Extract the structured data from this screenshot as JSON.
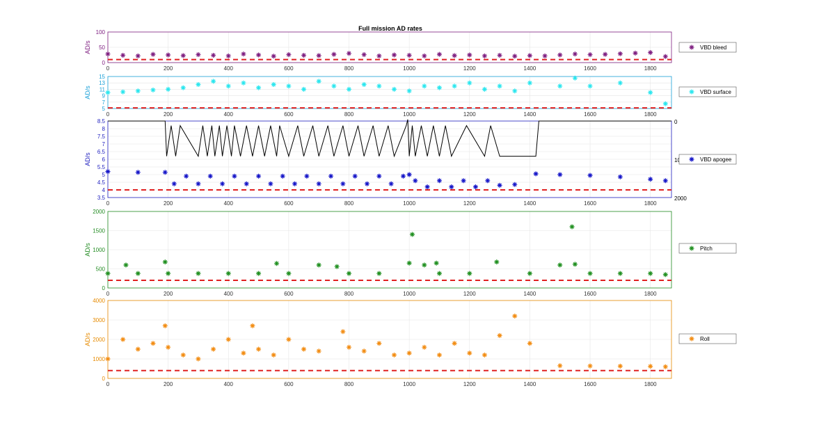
{
  "figure": {
    "title": "Full mission AD rates"
  },
  "chart_data": [
    {
      "type": "scatter",
      "title": "Full mission AD rates",
      "ylabel": "AD/s",
      "xlim": [
        0,
        1870
      ],
      "ylim": [
        0,
        100
      ],
      "yticks": [
        "0",
        "50",
        "100"
      ],
      "xticks": [
        "0",
        "200",
        "400",
        "600",
        "800",
        "1000",
        "1200",
        "1400",
        "1600",
        "1800"
      ],
      "grid": true,
      "legend": "right",
      "threshold": 10,
      "color": "#7e1e80",
      "series": [
        {
          "name": "VBD bleed",
          "color": "#7e1e80",
          "x": [
            0,
            50,
            100,
            150,
            200,
            250,
            300,
            350,
            400,
            450,
            500,
            550,
            600,
            650,
            700,
            750,
            800,
            850,
            900,
            950,
            1000,
            1050,
            1100,
            1150,
            1200,
            1250,
            1300,
            1350,
            1400,
            1450,
            1500,
            1550,
            1600,
            1650,
            1700,
            1750,
            1800,
            1850
          ],
          "y": [
            28,
            24,
            22,
            27,
            25,
            23,
            26,
            24,
            22,
            28,
            25,
            21,
            26,
            24,
            23,
            27,
            30,
            26,
            22,
            25,
            24,
            22,
            27,
            23,
            25,
            22,
            24,
            21,
            23,
            22,
            25,
            28,
            26,
            27,
            29,
            31,
            33,
            20
          ]
        }
      ]
    },
    {
      "type": "scatter",
      "ylabel": "AD/s",
      "xlim": [
        0,
        1870
      ],
      "ylim": [
        5,
        15
      ],
      "yticks": [
        "5",
        "7",
        "9",
        "11",
        "13",
        "15"
      ],
      "xticks": [
        "0",
        "200",
        "400",
        "600",
        "800",
        "1000",
        "1200",
        "1400",
        "1600",
        "1800"
      ],
      "grid": true,
      "legend": "right",
      "threshold": 5.2,
      "color": "#1aa0d8",
      "series": [
        {
          "name": "VBD surface",
          "color": "#2ae6ee",
          "x": [
            0,
            50,
            100,
            150,
            200,
            250,
            300,
            350,
            400,
            450,
            500,
            550,
            600,
            650,
            700,
            750,
            800,
            850,
            900,
            950,
            1000,
            1050,
            1100,
            1150,
            1200,
            1250,
            1300,
            1350,
            1400,
            1500,
            1550,
            1600,
            1700,
            1800,
            1850
          ],
          "y": [
            10,
            10.2,
            10.5,
            10.8,
            11,
            11.5,
            12.5,
            13.5,
            12,
            13,
            11.5,
            12.5,
            12,
            11,
            13.5,
            12,
            11,
            12.5,
            12,
            11,
            10.5,
            12,
            11.5,
            12,
            13,
            11,
            12,
            10.5,
            13,
            12,
            14.5,
            12,
            13,
            10,
            6.5
          ]
        }
      ]
    },
    {
      "type": "line",
      "ylabel": "AD/s",
      "xlim": [
        0,
        1870
      ],
      "ylim": [
        3.5,
        8.5
      ],
      "yticks": [
        "3.5",
        "4",
        "4.5",
        "5",
        "5.5",
        "6",
        "6.5",
        "7",
        "7.5",
        "8",
        "8.5"
      ],
      "xticks": [
        "0",
        "200",
        "400",
        "600",
        "800",
        "1000",
        "1200",
        "1400",
        "1600",
        "1800"
      ],
      "y2ticks": [
        "0",
        "1000",
        "2000"
      ],
      "grid": true,
      "legend": "right",
      "threshold": 4.0,
      "color": "#1f1fbf",
      "series": [
        {
          "name": "VBD apogee",
          "color": "#1515c8",
          "marker": "star",
          "x": [
            0,
            100,
            190,
            220,
            260,
            300,
            340,
            380,
            420,
            460,
            500,
            540,
            580,
            620,
            660,
            700,
            740,
            780,
            820,
            860,
            900,
            940,
            980,
            1000,
            1020,
            1060,
            1100,
            1140,
            1180,
            1220,
            1260,
            1300,
            1350,
            1420,
            1500,
            1600,
            1700,
            1800,
            1850
          ],
          "y": [
            5.2,
            5.15,
            5.15,
            4.4,
            4.9,
            4.4,
            4.9,
            4.4,
            4.9,
            4.4,
            4.9,
            4.4,
            4.9,
            4.4,
            4.9,
            4.4,
            4.9,
            4.4,
            4.9,
            4.4,
            4.9,
            4.4,
            4.9,
            5.0,
            4.6,
            4.2,
            4.6,
            4.2,
            4.6,
            4.2,
            4.6,
            4.3,
            4.35,
            5.05,
            5.0,
            4.95,
            4.85,
            4.7,
            4.6
          ]
        },
        {
          "name": "",
          "color": "#000000",
          "marker": "line",
          "x": [
            0,
            190,
            195,
            210,
            225,
            240,
            300,
            315,
            330,
            345,
            355,
            370,
            380,
            395,
            410,
            420,
            440,
            460,
            480,
            500,
            520,
            540,
            560,
            570,
            600,
            630,
            650,
            680,
            700,
            730,
            750,
            780,
            800,
            830,
            850,
            880,
            900,
            930,
            950,
            990,
            995,
            1000,
            1010,
            1020,
            1040,
            1060,
            1080,
            1100,
            1120,
            1140,
            1190,
            1250,
            1270,
            1300,
            1420,
            1430,
            1600,
            1800,
            1870
          ],
          "y": [
            8.5,
            8.5,
            6.2,
            8.2,
            6.2,
            8.2,
            6.2,
            8.2,
            6.2,
            8.2,
            6.2,
            8.2,
            6.2,
            8.2,
            6.2,
            8.2,
            6.2,
            8.2,
            6.2,
            8.2,
            6.2,
            8.2,
            6.2,
            8.2,
            6.2,
            8.2,
            6.2,
            8.2,
            6.2,
            8.2,
            6.2,
            8.2,
            6.2,
            8.2,
            6.2,
            8.2,
            6.2,
            8.2,
            6.2,
            8.2,
            8.6,
            6.2,
            8.2,
            6.2,
            8.2,
            6.2,
            8.2,
            6.2,
            8.2,
            6.2,
            8.2,
            6.2,
            8.2,
            6.2,
            6.2,
            8.5,
            8.5,
            8.5,
            8.5
          ]
        }
      ]
    },
    {
      "type": "scatter",
      "ylabel": "AD/s",
      "xlim": [
        0,
        1870
      ],
      "ylim": [
        0,
        2000
      ],
      "yticks": [
        "0",
        "500",
        "1000",
        "1500",
        "2000"
      ],
      "xticks": [
        "0",
        "200",
        "400",
        "600",
        "800",
        "1000",
        "1200",
        "1400",
        "1600",
        "1800"
      ],
      "grid": true,
      "legend": "right",
      "threshold": 200,
      "color": "#228b22",
      "series": [
        {
          "name": "Pitch",
          "color": "#1f8f1f",
          "x": [
            0,
            60,
            100,
            190,
            200,
            300,
            400,
            500,
            560,
            600,
            700,
            760,
            800,
            900,
            1000,
            1010,
            1050,
            1090,
            1100,
            1200,
            1290,
            1400,
            1500,
            1540,
            1550,
            1600,
            1700,
            1800,
            1850
          ],
          "y": [
            380,
            600,
            380,
            680,
            380,
            380,
            380,
            380,
            640,
            380,
            600,
            560,
            380,
            380,
            650,
            1400,
            600,
            650,
            380,
            380,
            680,
            380,
            600,
            1600,
            620,
            380,
            380,
            380,
            350
          ]
        }
      ]
    },
    {
      "type": "scatter",
      "ylabel": "AD/s",
      "xlim": [
        0,
        1870
      ],
      "ylim": [
        0,
        4000
      ],
      "yticks": [
        "0",
        "1000",
        "2000",
        "3000",
        "4000"
      ],
      "xticks": [
        "0",
        "200",
        "400",
        "600",
        "800",
        "1000",
        "1200",
        "1400",
        "1600",
        "1800"
      ],
      "grid": true,
      "legend": "right",
      "threshold": 400,
      "color": "#e68a00",
      "series": [
        {
          "name": "Roll",
          "color": "#f28c12",
          "x": [
            0,
            50,
            100,
            150,
            190,
            200,
            250,
            300,
            350,
            400,
            450,
            480,
            500,
            550,
            600,
            650,
            700,
            780,
            800,
            850,
            900,
            950,
            1000,
            1050,
            1100,
            1150,
            1200,
            1250,
            1300,
            1350,
            1400,
            1500,
            1600,
            1700,
            1800,
            1850
          ],
          "y": [
            1000,
            2000,
            1500,
            1800,
            2700,
            1600,
            1200,
            1000,
            1500,
            2000,
            1300,
            2700,
            1500,
            1200,
            2000,
            1500,
            1400,
            2400,
            1600,
            1400,
            1800,
            1200,
            1300,
            1600,
            1200,
            1800,
            1300,
            1200,
            2200,
            3200,
            1800,
            650,
            640,
            630,
            620,
            600
          ]
        }
      ]
    }
  ]
}
